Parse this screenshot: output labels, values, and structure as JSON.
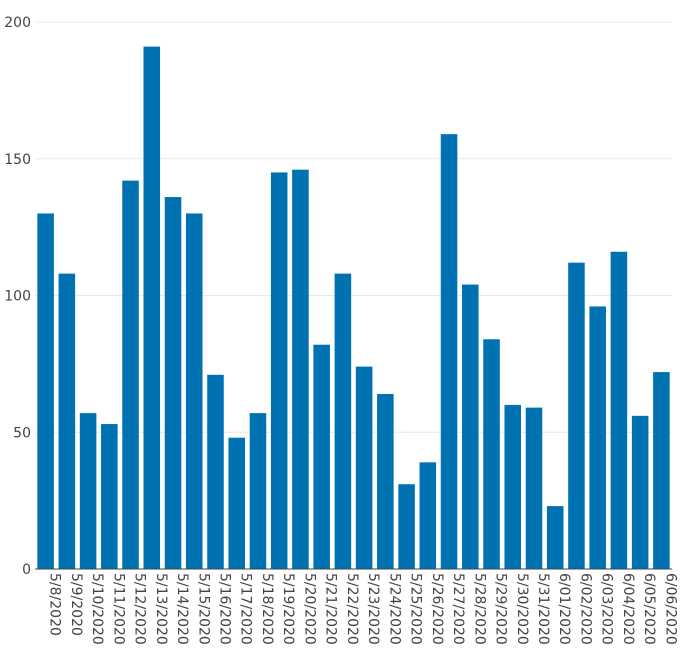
{
  "chart_data": {
    "type": "bar",
    "title": "",
    "xlabel": "",
    "ylabel": "",
    "ylim": [
      0,
      200
    ],
    "yticks": [
      0,
      50,
      100,
      150,
      200
    ],
    "grid": true,
    "bar_color": "#0072b2",
    "categories": [
      "5/8/2020",
      "5/9/2020",
      "5/10/2020",
      "5/11/2020",
      "5/12/2020",
      "5/13/2020",
      "5/14/2020",
      "5/15/2020",
      "5/16/2020",
      "5/17/2020",
      "5/18/2020",
      "5/19/2020",
      "5/20/2020",
      "5/21/2020",
      "5/22/2020",
      "5/23/2020",
      "5/24/2020",
      "5/25/2020",
      "5/26/2020",
      "5/27/2020",
      "5/28/2020",
      "5/29/2020",
      "5/30/2020",
      "5/31/2020",
      "6/01/2020",
      "6/02/2020",
      "6/03/2020",
      "6/04/2020",
      "6/05/2020",
      "6/06/2020"
    ],
    "values": [
      130,
      108,
      57,
      53,
      142,
      191,
      136,
      130,
      71,
      48,
      57,
      145,
      146,
      82,
      108,
      74,
      64,
      31,
      39,
      159,
      104,
      84,
      60,
      59,
      23,
      112,
      96,
      116,
      56,
      72
    ]
  }
}
